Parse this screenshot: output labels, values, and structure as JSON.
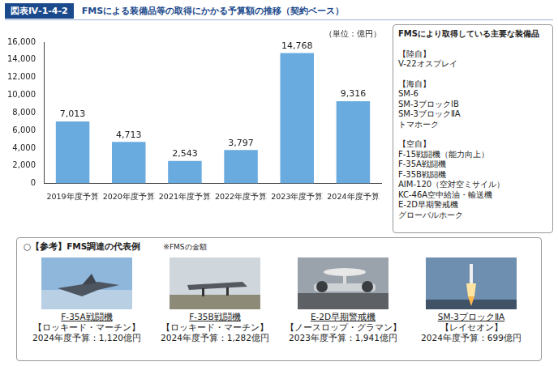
{
  "header": {
    "figure_number": "図表Ⅳ-1-4-2",
    "title": "FMSによる装備品等の取得にかかる予算額の推移（契約ベース）"
  },
  "chart_data": {
    "type": "bar",
    "annotation": "（単位：億円）",
    "categories": [
      "2019年度予算",
      "2020年度予算",
      "2021年度予算",
      "2022年度予算",
      "2023年度予算",
      "2024年度予算"
    ],
    "values": [
      7013,
      4713,
      2543,
      3797,
      14768,
      9316
    ],
    "value_labels": [
      "7,013",
      "4,713",
      "2,543",
      "3,797",
      "14,768",
      "9,316"
    ],
    "data_labels": true,
    "color": "#6aabdf",
    "ylim": [
      0,
      16000
    ],
    "yticks": [
      0,
      {
        "value": 2000,
        "label": "2,000"
      },
      {
        "value": 4000,
        "label": "4,000"
      },
      {
        "value": 6000,
        "label": "6,000"
      },
      {
        "value": 8000,
        "label": "8,000"
      },
      {
        "value": 10000,
        "label": "10,000"
      },
      {
        "value": 12000,
        "label": "12,000"
      },
      {
        "value": 14000,
        "label": "14,000"
      },
      {
        "value": 16000,
        "label": "16,000"
      }
    ],
    "grid": false
  },
  "side_panel": {
    "title": "FMSにより取得している主要な装備品",
    "groups": [
      {
        "heading": "【陸自】",
        "items": [
          "V-22オスプレイ"
        ]
      },
      {
        "heading": "【海自】",
        "items": [
          "SM-6",
          "SM-3ブロックⅠB",
          "SM-3ブロックⅡA",
          "トマホーク"
        ]
      },
      {
        "heading": "【空自】",
        "items": [
          "F-15戦闘機（能力向上）",
          "F-35A戦闘機",
          "F-35B戦闘機",
          "AIM-120（空対空ミサイル）",
          "KC-46A空中給油・輸送機",
          "E-2D早期警戒機",
          "グローバルホーク"
        ]
      }
    ]
  },
  "reference": {
    "title": "○【参考】FMS調達の代表例",
    "note": "※FMSの金額",
    "items": [
      {
        "name": "F-35A戦闘機",
        "maker": "【ロッキード・マーチン】",
        "budget": "2024年度予算：1,120億円"
      },
      {
        "name": "F-35B戦闘機",
        "maker": "【ロッキード・マーチン】",
        "budget": "2024年度予算：1,282億円"
      },
      {
        "name": "E-2D早期警戒機",
        "maker": "【ノースロップ・グラマン】",
        "budget": "2023年度予算：1,941億円"
      },
      {
        "name": "SM-3ブロックⅡA",
        "maker": "【レイセオン】",
        "budget": "2024年度予算：699億円"
      }
    ]
  }
}
